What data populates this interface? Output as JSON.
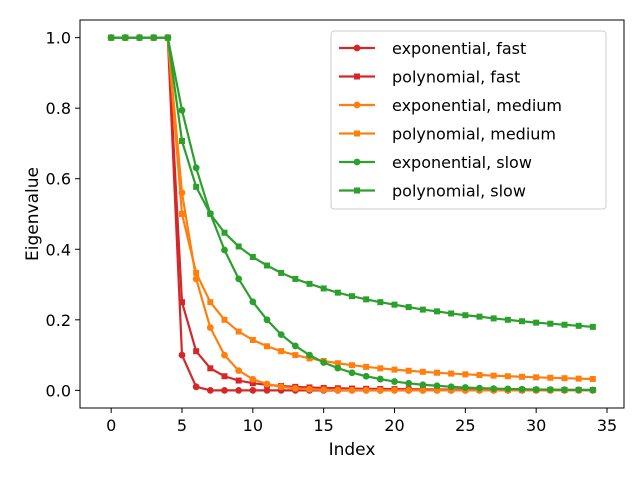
{
  "chart_data": {
    "type": "line",
    "xlabel": "Index",
    "ylabel": "Eigenvalue",
    "xlim": [
      -2.2,
      36.2
    ],
    "ylim": [
      -0.05,
      1.05
    ],
    "xticks": [
      0,
      5,
      10,
      15,
      20,
      25,
      30,
      35
    ],
    "xtick_labels": [
      "0",
      "5",
      "10",
      "15",
      "20",
      "25",
      "30",
      "35"
    ],
    "yticks": [
      0.0,
      0.2,
      0.4,
      0.6,
      0.8,
      1.0
    ],
    "ytick_labels": [
      "0.0",
      "0.2",
      "0.4",
      "0.6",
      "0.8",
      "1.0"
    ],
    "grid": false,
    "legend_position": "top-right",
    "x": [
      0,
      1,
      2,
      3,
      4,
      5,
      6,
      7,
      8,
      9,
      10,
      11,
      12,
      13,
      14,
      15,
      16,
      17,
      18,
      19,
      20,
      21,
      22,
      23,
      24,
      25,
      26,
      27,
      28,
      29,
      30,
      31,
      32,
      33,
      34
    ],
    "series": [
      {
        "name": "exponential, fast",
        "color": "#d62728",
        "marker": "circle",
        "values": [
          1,
          1,
          1,
          1,
          1,
          0.1,
          0.01,
          0,
          0,
          0,
          0,
          0,
          0,
          0,
          0,
          0,
          0,
          0,
          0,
          0,
          0,
          0,
          0,
          0,
          0,
          0,
          0,
          0,
          0,
          0,
          0,
          0,
          0,
          0,
          0
        ]
      },
      {
        "name": "polynomial, fast",
        "color": "#d62728",
        "marker": "square",
        "values": [
          1,
          1,
          1,
          1,
          1,
          0.25,
          0.111,
          0.0625,
          0.04,
          0.0278,
          0.0204,
          0.0156,
          0.0123,
          0.01,
          0.0083,
          0.0069,
          0.0059,
          0.0051,
          0.0044,
          0.0039,
          0.0035,
          0.0031,
          0.0028,
          0.0025,
          0.0023,
          0.0021,
          0.0019,
          0.0017,
          0.0016,
          0.0015,
          0.0014,
          0.0013,
          0.0012,
          0.0011,
          0.001
        ]
      },
      {
        "name": "exponential, medium",
        "color": "#ff7f0e",
        "marker": "circle",
        "values": [
          1,
          1,
          1,
          1,
          1,
          0.56,
          0.316,
          0.178,
          0.1,
          0.056,
          0.0316,
          0.0178,
          0.01,
          0.0056,
          0.0032,
          0.0018,
          0.001,
          0.0006,
          0.0003,
          0.0002,
          0.0001,
          0,
          0,
          0,
          0,
          0,
          0,
          0,
          0,
          0,
          0,
          0,
          0,
          0,
          0
        ]
      },
      {
        "name": "polynomial, medium",
        "color": "#ff7f0e",
        "marker": "square",
        "values": [
          1,
          1,
          1,
          1,
          1,
          0.5,
          0.333,
          0.25,
          0.2,
          0.1667,
          0.1429,
          0.125,
          0.1111,
          0.1,
          0.0909,
          0.0833,
          0.0769,
          0.0714,
          0.0667,
          0.0625,
          0.0588,
          0.0556,
          0.0526,
          0.05,
          0.0476,
          0.0455,
          0.0435,
          0.0417,
          0.04,
          0.0385,
          0.037,
          0.0357,
          0.0345,
          0.0333,
          0.0323
        ]
      },
      {
        "name": "exponential, slow",
        "color": "#2ca02c",
        "marker": "circle",
        "values": [
          1,
          1,
          1,
          1,
          1,
          0.794,
          0.631,
          0.501,
          0.398,
          0.316,
          0.251,
          0.2,
          0.158,
          0.126,
          0.1,
          0.079,
          0.063,
          0.05,
          0.04,
          0.032,
          0.025,
          0.02,
          0.016,
          0.013,
          0.01,
          0.008,
          0.0063,
          0.005,
          0.004,
          0.0032,
          0.0025,
          0.002,
          0.0016,
          0.0013,
          0.001
        ]
      },
      {
        "name": "polynomial, slow",
        "color": "#2ca02c",
        "marker": "square",
        "values": [
          1,
          1,
          1,
          1,
          1,
          0.707,
          0.577,
          0.5,
          0.447,
          0.408,
          0.378,
          0.354,
          0.333,
          0.316,
          0.302,
          0.289,
          0.277,
          0.267,
          0.258,
          0.25,
          0.243,
          0.236,
          0.229,
          0.224,
          0.218,
          0.213,
          0.209,
          0.204,
          0.2,
          0.196,
          0.192,
          0.189,
          0.186,
          0.183,
          0.18
        ]
      }
    ]
  }
}
